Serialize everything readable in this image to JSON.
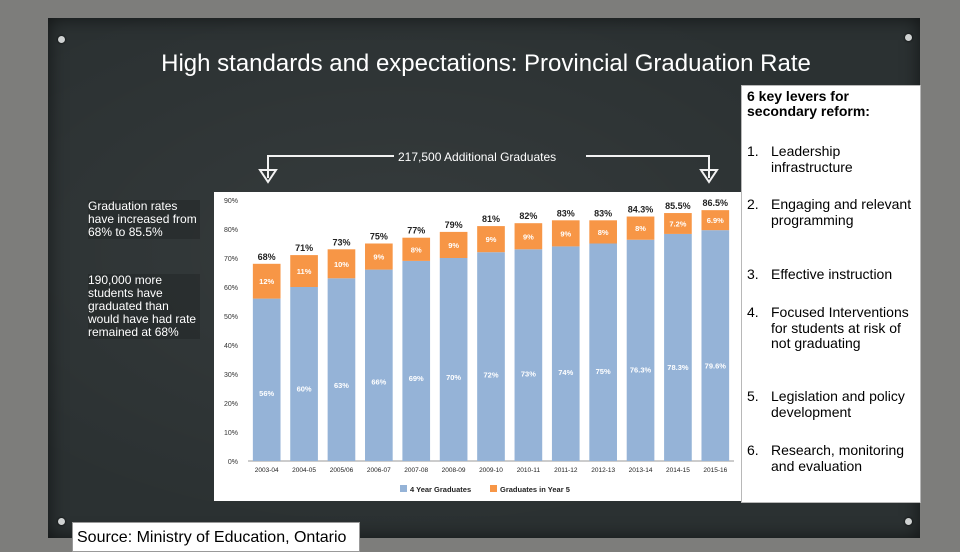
{
  "title": "High standards and expectations: Provincial Graduation Rate",
  "bracket_label": "217,500 Additional Graduates",
  "notes": [
    "Graduation rates have increased from 68% to 85.5%",
    "190,000 more students have graduated than would have had rate remained at 68%"
  ],
  "levers": {
    "title": "6 key levers for secondary reform:",
    "items": [
      {
        "num": "1.",
        "text": "Leadership infrastructure"
      },
      {
        "num": "2.",
        "text": "Engaging and relevant programming"
      },
      {
        "num": "3.",
        "text": "Effective instruction"
      },
      {
        "num": "4.",
        "text": "Focused Interventions for students at risk of not graduating"
      },
      {
        "num": "5.",
        "text": "Legislation and policy development"
      },
      {
        "num": "6.",
        "text": "Research, monitoring and evaluation"
      }
    ]
  },
  "source": "Source: Ministry of Education, Ontario",
  "colors": {
    "four_year": "#95b3d7",
    "year_five": "#f79646",
    "board": "#2b3132"
  },
  "chart_data": {
    "type": "bar",
    "stacked": true,
    "categories": [
      "2003-04",
      "2004-05",
      "2005/06",
      "2006-07",
      "2007-08",
      "2008-09",
      "2009-10",
      "2010-11",
      "2011-12",
      "2012-13",
      "2013-14",
      "2014-15",
      "2015-16"
    ],
    "series": [
      {
        "name": "4 Year Graduates",
        "values": [
          56,
          60,
          63,
          66,
          69,
          70,
          72,
          73,
          74,
          75,
          76.3,
          78.3,
          79.6
        ],
        "labels": [
          "56%",
          "60%",
          "63%",
          "66%",
          "69%",
          "70%",
          "72%",
          "73%",
          "74%",
          "75%",
          "76.3%",
          "78.3%",
          "79.6%"
        ]
      },
      {
        "name": "Graduates in Year 5",
        "values": [
          12,
          11,
          10,
          9,
          8,
          9,
          9,
          9,
          9,
          8,
          8,
          7.2,
          6.9
        ],
        "labels": [
          "12%",
          "11%",
          "10%",
          "9%",
          "8%",
          "9%",
          "9%",
          "9%",
          "9%",
          "8%",
          "8%",
          "7.2%",
          "6.9%"
        ]
      }
    ],
    "totals": [
      "68%",
      "71%",
      "73%",
      "75%",
      "77%",
      "79%",
      "81%",
      "82%",
      "83%",
      "83%",
      "84.3%",
      "85.5%",
      "86.5%"
    ],
    "yticks": [
      "0%",
      "10%",
      "20%",
      "30%",
      "40%",
      "50%",
      "60%",
      "70%",
      "80%",
      "90%"
    ],
    "ylim": [
      0,
      90
    ],
    "legend": "bottom"
  }
}
